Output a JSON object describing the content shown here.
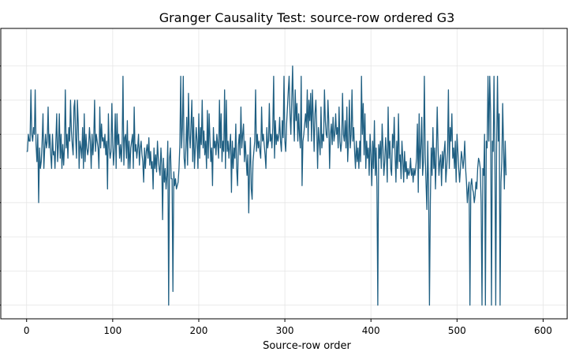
{
  "chart_data": {
    "type": "line",
    "title": "Granger Causality Test: source-row ordered G3",
    "xlabel": "Source-row order",
    "ylabel": "",
    "xlim": [
      -30,
      628
    ],
    "ylim": [
      -0.4,
      8.1
    ],
    "x_ticks": [
      0,
      100,
      200,
      300,
      400,
      500,
      600
    ],
    "y_gridlines": [
      0,
      1,
      2,
      3,
      4,
      5,
      6,
      7
    ],
    "grid": true,
    "legend": "none",
    "series": [
      {
        "color": "#1f5f82",
        "x_start": 0,
        "x_step": 1,
        "values": [
          4.5,
          4.5,
          5.0,
          4.8,
          4.8,
          6.3,
          5.0,
          4.8,
          5.2,
          5.0,
          6.3,
          4.7,
          4.2,
          5.0,
          3.0,
          4.6,
          4.0,
          4.2,
          4.8,
          5.6,
          4.0,
          4.6,
          5.0,
          4.6,
          4.8,
          5.8,
          4.6,
          5.0,
          4.4,
          4.0,
          5.0,
          4.4,
          4.5,
          4.0,
          4.8,
          5.6,
          4.2,
          4.7,
          5.6,
          4.3,
          5.0,
          4.0,
          4.7,
          4.1,
          4.6,
          6.3,
          4.6,
          5.0,
          4.3,
          5.2,
          4.8,
          6.0,
          5.1,
          4.7,
          4.4,
          5.8,
          6.0,
          4.9,
          4.3,
          6.0,
          5.3,
          4.0,
          4.8,
          4.6,
          4.3,
          5.2,
          4.0,
          5.6,
          4.2,
          5.0,
          4.6,
          4.4,
          4.6,
          5.2,
          4.8,
          4.0,
          5.0,
          4.4,
          4.8,
          6.0,
          4.5,
          5.0,
          4.8,
          4.6,
          4.0,
          5.8,
          4.6,
          5.3,
          4.8,
          4.9,
          4.6,
          5.0,
          4.4,
          4.8,
          3.4,
          5.6,
          4.6,
          4.3,
          4.5,
          5.9,
          4.7,
          4.1,
          4.6,
          5.6,
          4.0,
          5.6,
          4.7,
          5.0,
          4.3,
          4.7,
          4.2,
          4.8,
          6.7,
          4.1,
          4.9,
          5.0,
          4.3,
          5.4,
          4.0,
          4.8,
          4.0,
          4.6,
          4.8,
          5.0,
          4.0,
          5.8,
          4.5,
          4.7,
          4.3,
          4.6,
          5.0,
          4.1,
          4.6,
          4.8,
          4.4,
          4.2,
          3.6,
          4.6,
          4.0,
          4.5,
          4.7,
          4.3,
          4.9,
          4.1,
          4.5,
          4.0,
          4.2,
          3.4,
          4.6,
          4.0,
          4.4,
          3.9,
          4.8,
          4.3,
          4.0,
          3.8,
          4.6,
          4.1,
          2.5,
          4.3,
          3.6,
          4.0,
          3.4,
          3.8,
          4.8,
          0.0,
          4.3,
          4.6,
          3.7,
          3.7,
          0.4,
          3.9,
          3.5,
          3.7,
          3.4,
          3.5,
          3.6,
          4.0,
          4.7,
          6.7,
          4.6,
          5.2,
          6.7,
          4.3,
          4.0,
          4.6,
          5.5,
          4.1,
          6.2,
          5.0,
          4.6,
          5.3,
          6.0,
          4.2,
          5.5,
          4.0,
          4.6,
          5.2,
          4.8,
          4.0,
          5.6,
          4.3,
          5.2,
          4.7,
          6.0,
          4.6,
          5.1,
          4.4,
          4.8,
          4.0,
          5.7,
          4.3,
          5.6,
          4.8,
          4.2,
          4.6,
          3.5,
          5.2,
          4.6,
          4.8,
          4.4,
          5.0,
          4.7,
          4.3,
          6.0,
          4.6,
          5.6,
          4.2,
          4.8,
          4.5,
          6.3,
          4.0,
          6.0,
          4.5,
          4.8,
          4.3,
          4.7,
          5.0,
          3.3,
          4.8,
          4.0,
          4.6,
          4.3,
          5.3,
          4.0,
          3.5,
          4.7,
          5.0,
          4.4,
          5.8,
          4.6,
          5.0,
          5.3,
          4.2,
          4.8,
          4.3,
          3.8,
          4.4,
          2.7,
          4.0,
          4.9,
          3.4,
          3.1,
          4.2,
          4.5,
          4.8,
          6.3,
          4.5,
          5.0,
          4.6,
          4.8,
          4.5,
          4.3,
          5.8,
          4.8,
          5.0,
          4.7,
          4.4,
          4.0,
          5.2,
          4.6,
          4.8,
          5.9,
          4.8,
          5.0,
          4.6,
          5.2,
          6.7,
          4.3,
          5.4,
          4.7,
          5.0,
          4.8,
          5.0,
          5.5,
          4.8,
          4.5,
          5.4,
          4.9,
          6.7,
          4.8,
          4.5,
          5.3,
          5.8,
          6.3,
          6.7,
          5.6,
          5.0,
          6.0,
          7.0,
          5.6,
          4.8,
          6.3,
          5.4,
          5.9,
          4.8,
          5.6,
          5.0,
          4.6,
          6.7,
          3.5,
          4.8,
          5.0,
          5.3,
          5.6,
          5.2,
          6.3,
          4.8,
          6.0,
          5.4,
          6.2,
          4.8,
          6.3,
          5.5,
          4.5,
          5.6,
          6.0,
          5.2,
          4.0,
          5.2,
          4.8,
          4.4,
          5.8,
          4.6,
          5.0,
          4.8,
          6.3,
          5.4,
          5.0,
          4.9,
          6.0,
          5.4,
          4.0,
          5.0,
          5.3,
          4.7,
          5.5,
          4.8,
          5.0,
          5.6,
          5.0,
          5.2,
          4.6,
          5.8,
          4.8,
          4.5,
          4.8,
          6.2,
          5.0,
          4.8,
          5.4,
          4.6,
          5.8,
          4.2,
          4.8,
          6.0,
          4.6,
          5.0,
          6.3,
          4.8,
          5.2,
          4.5,
          4.0,
          4.8,
          4.2,
          4.6,
          4.0,
          4.8,
          4.2,
          6.7,
          5.0,
          5.9,
          4.4,
          5.6,
          4.0,
          4.8,
          4.3,
          4.6,
          3.8,
          5.0,
          4.4,
          3.5,
          4.8,
          4.0,
          5.4,
          3.8,
          4.6,
          3.5,
          0.0,
          4.7,
          4.3,
          4.8,
          4.0,
          5.3,
          4.6,
          3.8,
          4.2,
          4.9,
          4.4,
          3.6,
          5.8,
          4.3,
          4.8,
          4.0,
          3.8,
          5.0,
          4.6,
          5.5,
          4.4,
          3.6,
          4.8,
          4.0,
          5.6,
          4.2,
          4.4,
          3.7,
          4.8,
          4.3,
          3.6,
          4.5,
          3.9,
          4.2,
          3.7,
          4.0,
          3.8,
          3.9,
          4.3,
          3.8,
          4.0,
          3.6,
          4.0,
          3.8,
          4.0,
          4.3,
          5.3,
          3.3,
          5.6,
          4.0,
          4.6,
          5.5,
          3.8,
          4.2,
          6.7,
          4.4,
          3.6,
          2.8,
          4.8,
          3.4,
          0.0,
          3.0,
          4.6,
          3.8,
          5.2,
          4.0,
          4.6,
          3.4,
          4.4,
          5.8,
          4.6,
          3.8,
          4.2,
          4.4,
          3.5,
          4.5,
          4.0,
          4.5,
          4.8,
          3.6,
          4.0,
          4.5,
          6.3,
          4.0,
          5.2,
          4.8,
          5.6,
          4.3,
          4.6,
          4.0,
          4.8,
          3.6,
          5.0,
          4.5,
          4.0,
          3.6,
          4.0,
          4.5,
          4.3,
          4.0,
          4.3,
          4.8,
          4.0,
          3.6,
          3.0,
          3.4,
          3.6,
          0.0,
          3.5,
          3.7,
          3.4,
          3.3,
          3.0,
          3.2,
          3.6,
          3.4,
          4.0,
          4.3,
          4.2,
          4.0,
          3.0,
          0.0,
          4.0,
          3.8,
          5.0,
          0.0,
          4.8,
          4.6,
          6.7,
          4.8,
          6.7,
          5.6,
          0.0,
          4.8,
          4.5,
          6.7,
          4.5,
          0.0,
          4.6,
          6.7,
          4.8,
          5.6,
          0.0,
          3.6,
          4.2,
          5.9,
          4.6,
          3.4,
          4.8,
          3.8
        ]
      }
    ]
  }
}
